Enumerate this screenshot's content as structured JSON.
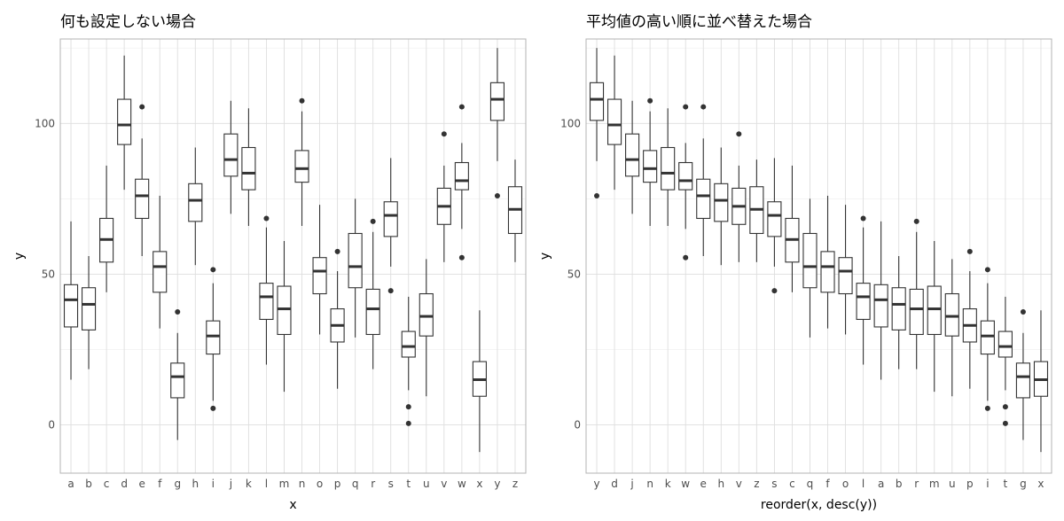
{
  "charts": [
    {
      "type": "boxplot",
      "title": "何も設定しない場合",
      "xlabel": "x",
      "ylabel": "y",
      "ylim": [
        -16,
        128
      ],
      "y_ticks": [
        0,
        50,
        100
      ],
      "y_tick_labels": [
        "0",
        "50",
        "100"
      ],
      "grid": true,
      "theme": "light",
      "categories": [
        "a",
        "b",
        "c",
        "d",
        "e",
        "f",
        "g",
        "h",
        "i",
        "j",
        "k",
        "l",
        "m",
        "n",
        "o",
        "p",
        "q",
        "r",
        "s",
        "t",
        "u",
        "v",
        "w",
        "x",
        "y",
        "z"
      ],
      "boxes": [
        {
          "lw": 15,
          "q1": 32.5,
          "med": 41.5,
          "q3": 46.5,
          "uw": 67.5,
          "out": []
        },
        {
          "lw": 18.5,
          "q1": 31.5,
          "med": 40,
          "q3": 45.5,
          "uw": 56,
          "out": []
        },
        {
          "lw": 44,
          "q1": 54,
          "med": 61.5,
          "q3": 68.5,
          "uw": 86,
          "out": []
        },
        {
          "lw": 78,
          "q1": 93,
          "med": 99.5,
          "q3": 108,
          "uw": 122.5,
          "out": []
        },
        {
          "lw": 56,
          "q1": 68.5,
          "med": 76,
          "q3": 81.5,
          "uw": 95,
          "out": [
            105.5
          ]
        },
        {
          "lw": 32,
          "q1": 44,
          "med": 52.5,
          "q3": 57.5,
          "uw": 76,
          "out": []
        },
        {
          "lw": -5,
          "q1": 9,
          "med": 16,
          "q3": 20.5,
          "uw": 30.5,
          "out": [
            37.5
          ]
        },
        {
          "lw": 53,
          "q1": 67.5,
          "med": 74.5,
          "q3": 80,
          "uw": 92,
          "out": []
        },
        {
          "lw": 8,
          "q1": 23.5,
          "med": 29.5,
          "q3": 34.5,
          "uw": 47,
          "out": [
            51.5,
            5.5
          ]
        },
        {
          "lw": 70,
          "q1": 82.5,
          "med": 88,
          "q3": 96.5,
          "uw": 107.5,
          "out": []
        },
        {
          "lw": 66,
          "q1": 78,
          "med": 83.5,
          "q3": 92,
          "uw": 105,
          "out": []
        },
        {
          "lw": 20,
          "q1": 35,
          "med": 42.5,
          "q3": 47,
          "uw": 65.5,
          "out": [
            68.5
          ]
        },
        {
          "lw": 11,
          "q1": 30,
          "med": 38.5,
          "q3": 46,
          "uw": 61,
          "out": []
        },
        {
          "lw": 66,
          "q1": 80.5,
          "med": 85,
          "q3": 91,
          "uw": 104,
          "out": [
            107.5
          ]
        },
        {
          "lw": 30,
          "q1": 43.5,
          "med": 51,
          "q3": 55.5,
          "uw": 73,
          "out": []
        },
        {
          "lw": 12,
          "q1": 27.5,
          "med": 33,
          "q3": 38.5,
          "uw": 51,
          "out": [
            57.5
          ]
        },
        {
          "lw": 29,
          "q1": 45.5,
          "med": 52.5,
          "q3": 63.5,
          "uw": 75,
          "out": []
        },
        {
          "lw": 18.5,
          "q1": 30,
          "med": 38.5,
          "q3": 45,
          "uw": 64,
          "out": [
            67.5
          ]
        },
        {
          "lw": 52.5,
          "q1": 62.5,
          "med": 69.5,
          "q3": 74,
          "uw": 88.5,
          "out": [
            44.5
          ]
        },
        {
          "lw": 11.5,
          "q1": 22.5,
          "med": 26,
          "q3": 31,
          "uw": 42.5,
          "out": [
            6,
            0.5
          ]
        },
        {
          "lw": 9.5,
          "q1": 29.5,
          "med": 36,
          "q3": 43.5,
          "uw": 55,
          "out": []
        },
        {
          "lw": 54,
          "q1": 66.5,
          "med": 72.5,
          "q3": 78.5,
          "uw": 86,
          "out": [
            96.5
          ]
        },
        {
          "lw": 65,
          "q1": 78,
          "med": 81,
          "q3": 87,
          "uw": 93.5,
          "out": [
            105.5,
            55.5
          ]
        },
        {
          "lw": -9,
          "q1": 9.5,
          "med": 15,
          "q3": 21,
          "uw": 38,
          "out": []
        },
        {
          "lw": 87.5,
          "q1": 101,
          "med": 108,
          "q3": 113.5,
          "uw": 125,
          "out": [
            76
          ]
        },
        {
          "lw": 54,
          "q1": 63.5,
          "med": 71.5,
          "q3": 79,
          "uw": 88,
          "out": []
        }
      ]
    },
    {
      "type": "boxplot",
      "title": "平均値の高い順に並べ替えた場合",
      "xlabel": "reorder(x, desc(y))",
      "ylabel": "y",
      "ylim": [
        -16,
        128
      ],
      "y_ticks": [
        0,
        50,
        100
      ],
      "y_tick_labels": [
        "0",
        "50",
        "100"
      ],
      "grid": true,
      "theme": "light",
      "categories": [
        "y",
        "d",
        "j",
        "n",
        "k",
        "w",
        "e",
        "h",
        "v",
        "z",
        "s",
        "c",
        "q",
        "f",
        "o",
        "l",
        "a",
        "b",
        "r",
        "m",
        "u",
        "p",
        "i",
        "t",
        "g",
        "x"
      ],
      "boxes": [
        {
          "lw": 87.5,
          "q1": 101,
          "med": 108,
          "q3": 113.5,
          "uw": 125,
          "out": [
            76
          ]
        },
        {
          "lw": 78,
          "q1": 93,
          "med": 99.5,
          "q3": 108,
          "uw": 122.5,
          "out": []
        },
        {
          "lw": 70,
          "q1": 82.5,
          "med": 88,
          "q3": 96.5,
          "uw": 107.5,
          "out": []
        },
        {
          "lw": 66,
          "q1": 80.5,
          "med": 85,
          "q3": 91,
          "uw": 104,
          "out": [
            107.5
          ]
        },
        {
          "lw": 66,
          "q1": 78,
          "med": 83.5,
          "q3": 92,
          "uw": 105,
          "out": []
        },
        {
          "lw": 65,
          "q1": 78,
          "med": 81,
          "q3": 87,
          "uw": 93.5,
          "out": [
            105.5,
            55.5
          ]
        },
        {
          "lw": 56,
          "q1": 68.5,
          "med": 76,
          "q3": 81.5,
          "uw": 95,
          "out": [
            105.5
          ]
        },
        {
          "lw": 53,
          "q1": 67.5,
          "med": 74.5,
          "q3": 80,
          "uw": 92,
          "out": []
        },
        {
          "lw": 54,
          "q1": 66.5,
          "med": 72.5,
          "q3": 78.5,
          "uw": 86,
          "out": [
            96.5
          ]
        },
        {
          "lw": 54,
          "q1": 63.5,
          "med": 71.5,
          "q3": 79,
          "uw": 88,
          "out": []
        },
        {
          "lw": 52.5,
          "q1": 62.5,
          "med": 69.5,
          "q3": 74,
          "uw": 88.5,
          "out": [
            44.5
          ]
        },
        {
          "lw": 44,
          "q1": 54,
          "med": 61.5,
          "q3": 68.5,
          "uw": 86,
          "out": []
        },
        {
          "lw": 29,
          "q1": 45.5,
          "med": 52.5,
          "q3": 63.5,
          "uw": 75,
          "out": []
        },
        {
          "lw": 32,
          "q1": 44,
          "med": 52.5,
          "q3": 57.5,
          "uw": 76,
          "out": []
        },
        {
          "lw": 30,
          "q1": 43.5,
          "med": 51,
          "q3": 55.5,
          "uw": 73,
          "out": []
        },
        {
          "lw": 20,
          "q1": 35,
          "med": 42.5,
          "q3": 47,
          "uw": 65.5,
          "out": [
            68.5
          ]
        },
        {
          "lw": 15,
          "q1": 32.5,
          "med": 41.5,
          "q3": 46.5,
          "uw": 67.5,
          "out": []
        },
        {
          "lw": 18.5,
          "q1": 31.5,
          "med": 40,
          "q3": 45.5,
          "uw": 56,
          "out": []
        },
        {
          "lw": 18.5,
          "q1": 30,
          "med": 38.5,
          "q3": 45,
          "uw": 64,
          "out": [
            67.5
          ]
        },
        {
          "lw": 11,
          "q1": 30,
          "med": 38.5,
          "q3": 46,
          "uw": 61,
          "out": []
        },
        {
          "lw": 9.5,
          "q1": 29.5,
          "med": 36,
          "q3": 43.5,
          "uw": 55,
          "out": []
        },
        {
          "lw": 12,
          "q1": 27.5,
          "med": 33,
          "q3": 38.5,
          "uw": 51,
          "out": [
            57.5
          ]
        },
        {
          "lw": 8,
          "q1": 23.5,
          "med": 29.5,
          "q3": 34.5,
          "uw": 47,
          "out": [
            51.5,
            5.5
          ]
        },
        {
          "lw": 11.5,
          "q1": 22.5,
          "med": 26,
          "q3": 31,
          "uw": 42.5,
          "out": [
            6,
            0.5
          ]
        },
        {
          "lw": -5,
          "q1": 9,
          "med": 16,
          "q3": 20.5,
          "uw": 30.5,
          "out": [
            37.5
          ]
        },
        {
          "lw": -9,
          "q1": 9.5,
          "med": 15,
          "q3": 21,
          "uw": 38,
          "out": []
        }
      ]
    }
  ],
  "colors": {
    "background": "#ffffff",
    "panel_border": "#b3b3b3",
    "grid_major": "#dedede",
    "grid_minor": "#eeeeee",
    "box_line": "#333333",
    "outlier": "#333333",
    "tick_label": "#4d4d4d"
  }
}
